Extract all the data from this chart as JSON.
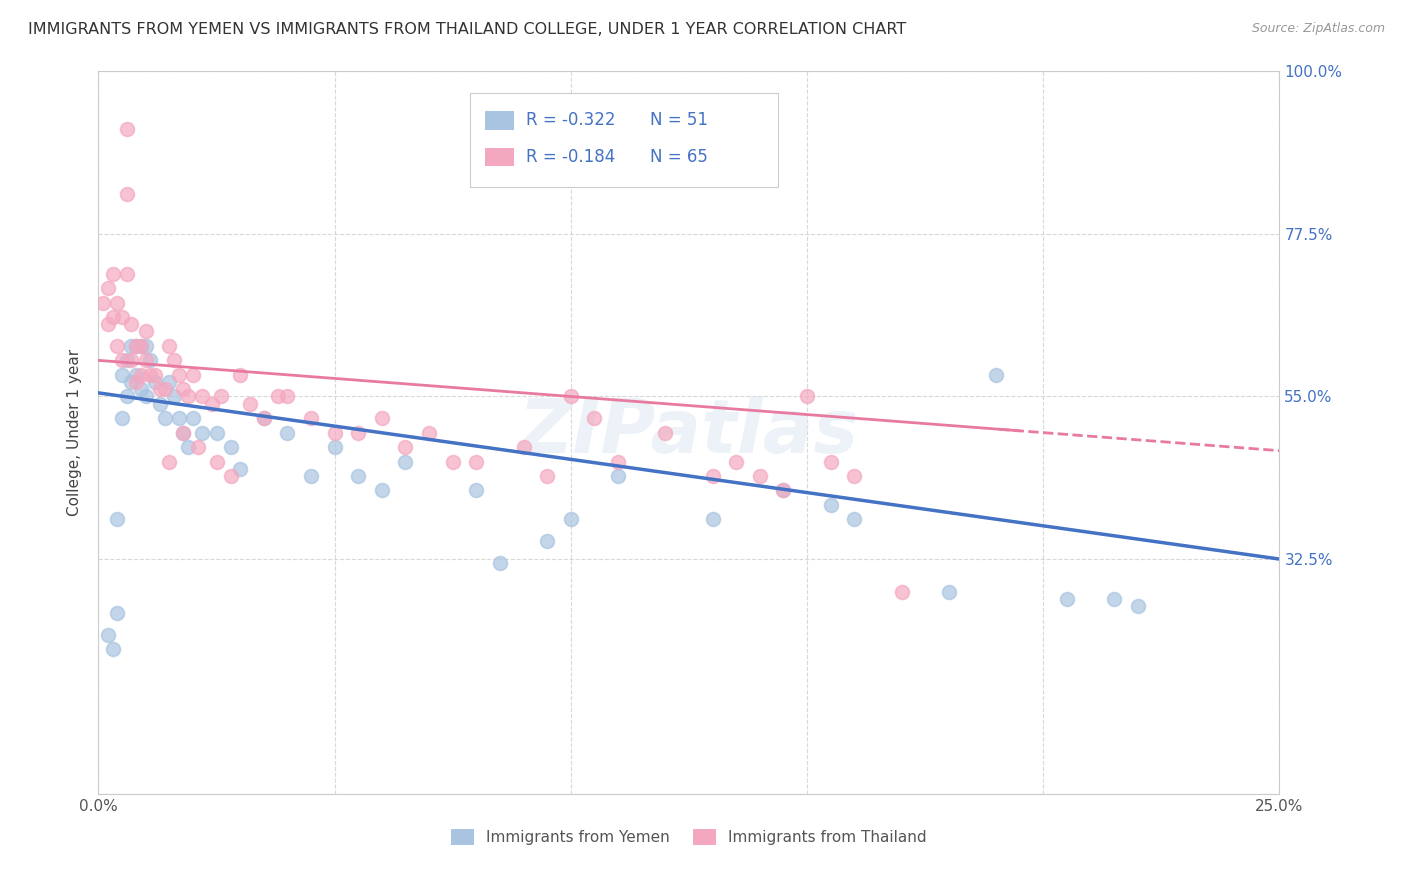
{
  "title": "IMMIGRANTS FROM YEMEN VS IMMIGRANTS FROM THAILAND COLLEGE, UNDER 1 YEAR CORRELATION CHART",
  "source": "Source: ZipAtlas.com",
  "ylabel": "College, Under 1 year",
  "x_min": 0.0,
  "x_max": 0.25,
  "y_min": 0.0,
  "y_max": 1.0,
  "x_ticks": [
    0.0,
    0.05,
    0.1,
    0.15,
    0.2,
    0.25
  ],
  "x_tick_labels": [
    "0.0%",
    "",
    "",
    "",
    "",
    "25.0%"
  ],
  "y_ticks": [
    0.0,
    0.325,
    0.55,
    0.775,
    1.0
  ],
  "y_tick_right_labels": [
    "",
    "32.5%",
    "55.0%",
    "77.5%",
    "100.0%"
  ],
  "yemen_color": "#a8c4e0",
  "thailand_color": "#f4a8c0",
  "yemen_line_color": "#4472c4",
  "thailand_line_color": "#e87aa0",
  "legend_R_yemen": "-0.322",
  "legend_N_yemen": "51",
  "legend_R_thailand": "-0.184",
  "legend_N_thailand": "65",
  "watermark": "ZIPatlas",
  "yemen_scatter_x": [
    0.002,
    0.003,
    0.004,
    0.004,
    0.005,
    0.005,
    0.006,
    0.006,
    0.007,
    0.007,
    0.008,
    0.008,
    0.009,
    0.009,
    0.01,
    0.01,
    0.011,
    0.012,
    0.013,
    0.014,
    0.015,
    0.016,
    0.017,
    0.018,
    0.019,
    0.02,
    0.022,
    0.025,
    0.028,
    0.03,
    0.035,
    0.04,
    0.045,
    0.05,
    0.055,
    0.06,
    0.065,
    0.08,
    0.085,
    0.095,
    0.1,
    0.11,
    0.13,
    0.145,
    0.155,
    0.16,
    0.18,
    0.19,
    0.205,
    0.215,
    0.22
  ],
  "yemen_scatter_y": [
    0.22,
    0.2,
    0.38,
    0.25,
    0.58,
    0.52,
    0.6,
    0.55,
    0.62,
    0.57,
    0.62,
    0.58,
    0.62,
    0.56,
    0.62,
    0.55,
    0.6,
    0.57,
    0.54,
    0.52,
    0.57,
    0.55,
    0.52,
    0.5,
    0.48,
    0.52,
    0.5,
    0.5,
    0.48,
    0.45,
    0.52,
    0.5,
    0.44,
    0.48,
    0.44,
    0.42,
    0.46,
    0.42,
    0.32,
    0.35,
    0.38,
    0.44,
    0.38,
    0.42,
    0.4,
    0.38,
    0.28,
    0.58,
    0.27,
    0.27,
    0.26
  ],
  "thailand_scatter_x": [
    0.001,
    0.002,
    0.002,
    0.003,
    0.003,
    0.004,
    0.004,
    0.005,
    0.005,
    0.006,
    0.006,
    0.006,
    0.007,
    0.007,
    0.008,
    0.008,
    0.009,
    0.009,
    0.01,
    0.01,
    0.011,
    0.012,
    0.013,
    0.014,
    0.015,
    0.016,
    0.017,
    0.018,
    0.019,
    0.02,
    0.022,
    0.024,
    0.026,
    0.03,
    0.032,
    0.035,
    0.038,
    0.04,
    0.045,
    0.05,
    0.055,
    0.06,
    0.065,
    0.07,
    0.075,
    0.08,
    0.09,
    0.095,
    0.1,
    0.105,
    0.11,
    0.12,
    0.13,
    0.135,
    0.14,
    0.145,
    0.15,
    0.155,
    0.16,
    0.17,
    0.015,
    0.018,
    0.021,
    0.025,
    0.028
  ],
  "thailand_scatter_y": [
    0.68,
    0.7,
    0.65,
    0.72,
    0.66,
    0.68,
    0.62,
    0.66,
    0.6,
    0.92,
    0.83,
    0.72,
    0.65,
    0.6,
    0.62,
    0.57,
    0.62,
    0.58,
    0.64,
    0.6,
    0.58,
    0.58,
    0.56,
    0.56,
    0.62,
    0.6,
    0.58,
    0.56,
    0.55,
    0.58,
    0.55,
    0.54,
    0.55,
    0.58,
    0.54,
    0.52,
    0.55,
    0.55,
    0.52,
    0.5,
    0.5,
    0.52,
    0.48,
    0.5,
    0.46,
    0.46,
    0.48,
    0.44,
    0.55,
    0.52,
    0.46,
    0.5,
    0.44,
    0.46,
    0.44,
    0.42,
    0.55,
    0.46,
    0.44,
    0.28,
    0.46,
    0.5,
    0.48,
    0.46,
    0.44
  ]
}
